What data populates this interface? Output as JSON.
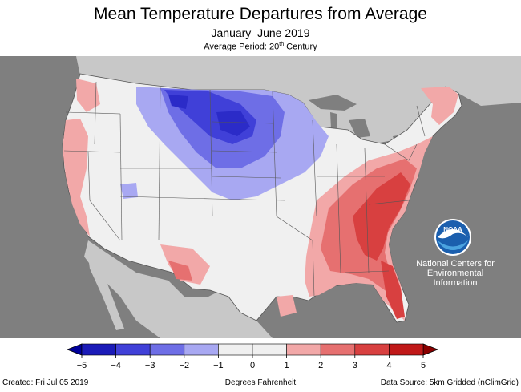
{
  "header": {
    "title": "Mean Temperature Departures from Average",
    "subtitle": "January–June 2019",
    "period_prefix": "Average Period: 20",
    "period_sup": "th",
    "period_suffix": " Century"
  },
  "legend": {
    "ticks": [
      "−5",
      "−4",
      "−3",
      "−2",
      "−1",
      "0",
      "1",
      "2",
      "3",
      "4",
      "5"
    ],
    "colors": [
      "#1b1bb8",
      "#4040d8",
      "#6e6ee6",
      "#a8a8f2",
      "#f0f0f0",
      "#f0f0f0",
      "#f2a8a8",
      "#e67070",
      "#d84040",
      "#c01818"
    ]
  },
  "branding": {
    "logo_text": "NOAA",
    "org_line1": "National Centers for",
    "org_line2": "Environmental",
    "org_line3": "Information"
  },
  "footer": {
    "created": "Created: Fri Jul 05 2019",
    "units": "Degrees Fahrenheit",
    "source": "Data Source: 5km Gridded (nClimGrid)"
  },
  "map_colors": {
    "ocean": "#7f7f7f",
    "land_outside": "#c8c8c8",
    "near_normal": "#f0f0f0",
    "cold_light": "#a8a8f2",
    "cold_mid": "#6e6ee6",
    "cold_strong": "#4040d8",
    "cold_deep": "#2b2bc8",
    "warm_light": "#f2a8a8",
    "warm_mid": "#e67070",
    "warm_strong": "#d84040",
    "border": "#555555"
  }
}
